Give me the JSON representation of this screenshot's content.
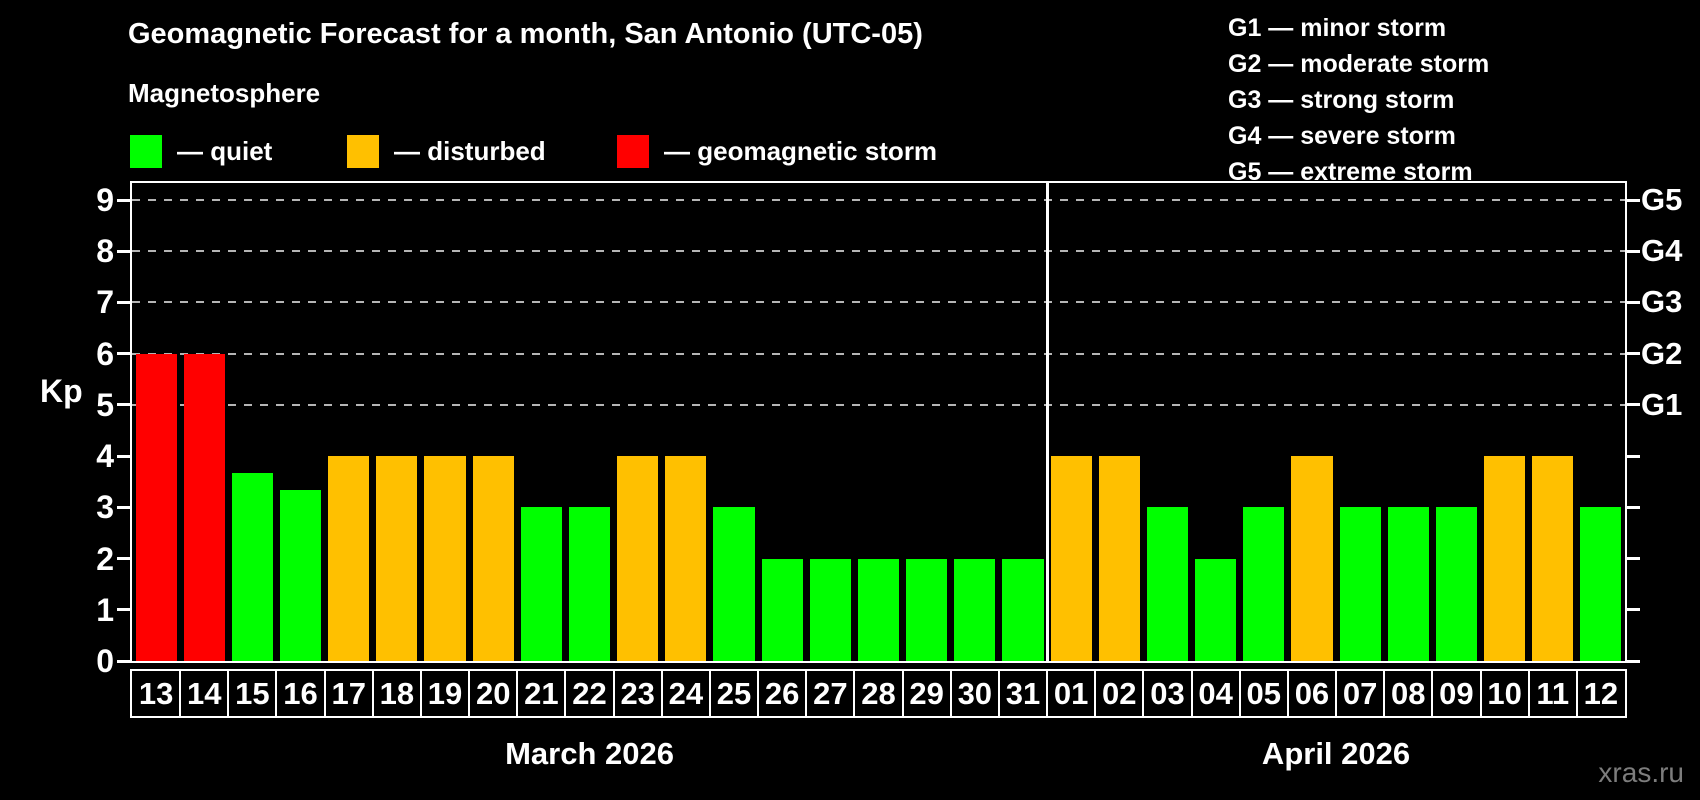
{
  "title": "Geomagnetic Forecast for a month, San Antonio (UTC-05)",
  "subtitle": "Magnetosphere",
  "legend": {
    "items": [
      {
        "name": "quiet",
        "label": "— quiet",
        "color": "#00ff00",
        "x": 130
      },
      {
        "name": "disturbed",
        "label": "— disturbed",
        "color": "#ffc000",
        "x": 347
      },
      {
        "name": "storm",
        "label": "— geomagnetic storm",
        "color": "#ff0000",
        "x": 617
      }
    ]
  },
  "storm_scale": {
    "lines": [
      "G1 — minor storm",
      "G2 — moderate storm",
      "G3 — strong storm",
      "G4 — severe storm",
      "G5 — extreme storm"
    ]
  },
  "watermark": "xras.ru",
  "chart_data": {
    "type": "bar",
    "ylabel": "Kp",
    "ylim": [
      0,
      9.4
    ],
    "yticks": [
      0,
      1,
      2,
      3,
      4,
      5,
      6,
      7,
      8,
      9
    ],
    "right_axis": [
      {
        "kp": 5,
        "label": "G1"
      },
      {
        "kp": 6,
        "label": "G2"
      },
      {
        "kp": 7,
        "label": "G3"
      },
      {
        "kp": 8,
        "label": "G4"
      },
      {
        "kp": 9,
        "label": "G5"
      }
    ],
    "dashed_gridlines_kp": [
      5,
      6,
      7,
      8,
      9
    ],
    "grid_color": "#b5b5b5",
    "status_colors": {
      "quiet": "#00ff00",
      "disturbed": "#ffc000",
      "storm": "#ff0000"
    },
    "months": [
      {
        "label": "March 2026",
        "days": [
          {
            "day": "13",
            "kp": 6,
            "status": "storm"
          },
          {
            "day": "14",
            "kp": 6,
            "status": "storm"
          },
          {
            "day": "15",
            "kp": 3.67,
            "status": "quiet"
          },
          {
            "day": "16",
            "kp": 3.33,
            "status": "quiet"
          },
          {
            "day": "17",
            "kp": 4,
            "status": "disturbed"
          },
          {
            "day": "18",
            "kp": 4,
            "status": "disturbed"
          },
          {
            "day": "19",
            "kp": 4,
            "status": "disturbed"
          },
          {
            "day": "20",
            "kp": 4,
            "status": "disturbed"
          },
          {
            "day": "21",
            "kp": 3,
            "status": "quiet"
          },
          {
            "day": "22",
            "kp": 3,
            "status": "quiet"
          },
          {
            "day": "23",
            "kp": 4,
            "status": "disturbed"
          },
          {
            "day": "24",
            "kp": 4,
            "status": "disturbed"
          },
          {
            "day": "25",
            "kp": 3,
            "status": "quiet"
          },
          {
            "day": "26",
            "kp": 2,
            "status": "quiet"
          },
          {
            "day": "27",
            "kp": 2,
            "status": "quiet"
          },
          {
            "day": "28",
            "kp": 2,
            "status": "quiet"
          },
          {
            "day": "29",
            "kp": 2,
            "status": "quiet"
          },
          {
            "day": "30",
            "kp": 2,
            "status": "quiet"
          },
          {
            "day": "31",
            "kp": 2,
            "status": "quiet"
          }
        ]
      },
      {
        "label": "April 2026",
        "days": [
          {
            "day": "01",
            "kp": 4,
            "status": "disturbed"
          },
          {
            "day": "02",
            "kp": 4,
            "status": "disturbed"
          },
          {
            "day": "03",
            "kp": 3,
            "status": "quiet"
          },
          {
            "day": "04",
            "kp": 2,
            "status": "quiet"
          },
          {
            "day": "05",
            "kp": 3,
            "status": "quiet"
          },
          {
            "day": "06",
            "kp": 4,
            "status": "disturbed"
          },
          {
            "day": "07",
            "kp": 3,
            "status": "quiet"
          },
          {
            "day": "08",
            "kp": 3,
            "status": "quiet"
          },
          {
            "day": "09",
            "kp": 3,
            "status": "quiet"
          },
          {
            "day": "10",
            "kp": 4,
            "status": "disturbed"
          },
          {
            "day": "11",
            "kp": 4,
            "status": "disturbed"
          },
          {
            "day": "12",
            "kp": 3,
            "status": "quiet"
          }
        ]
      }
    ]
  }
}
